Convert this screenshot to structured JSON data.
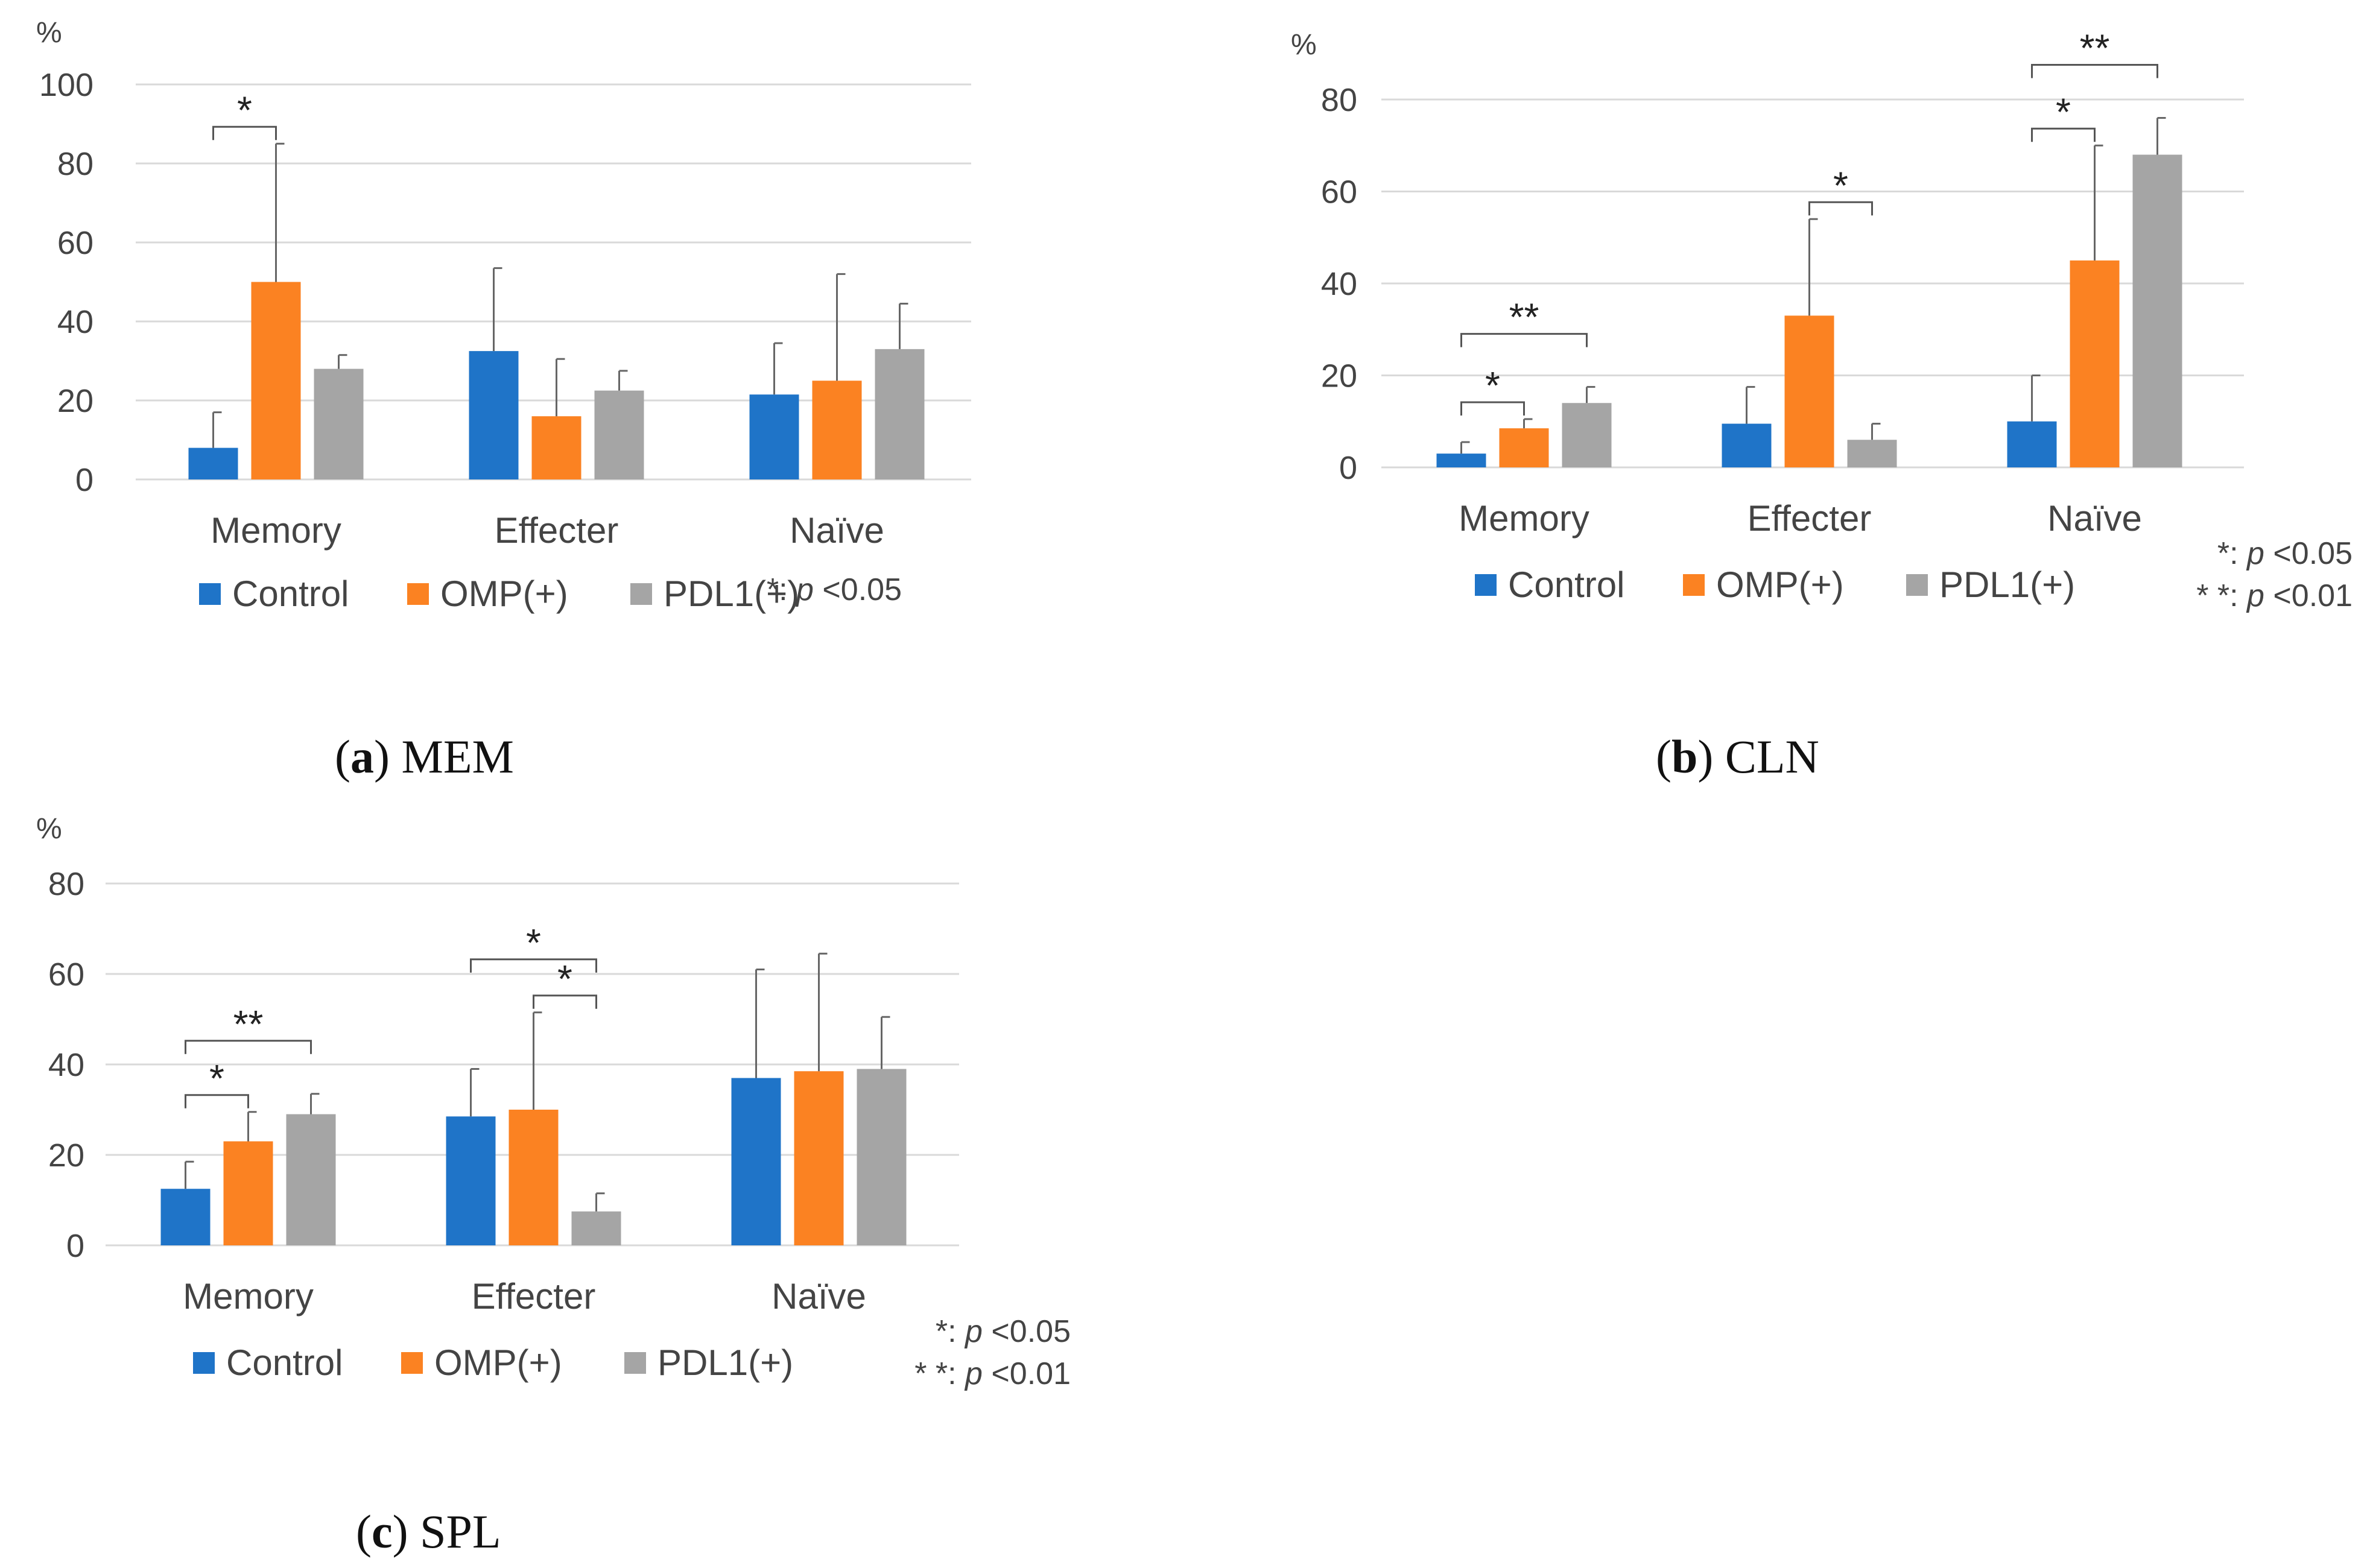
{
  "legend": [
    "Control",
    "OMP(+)",
    "PDL1(+)"
  ],
  "colors": [
    "#1f74c8",
    "#fb8222",
    "#a5a5a5"
  ],
  "unit_label": "%",
  "categories": [
    "Memory",
    "Effecter",
    "Naïve"
  ],
  "notes": {
    "p05": "*: p <0.05",
    "p01": "* *: p <0.01"
  },
  "captions": {
    "a": {
      "letter": "a",
      "name": "MEM"
    },
    "b": {
      "letter": "b",
      "name": "CLN"
    },
    "c": {
      "letter": "c",
      "name": "SPL"
    }
  },
  "chart_data": [
    {
      "id": "a",
      "type": "bar",
      "categories": [
        "Memory",
        "Effecter",
        "Naïve"
      ],
      "ylim": [
        0,
        100
      ],
      "yticks": [
        0,
        20,
        40,
        60,
        80,
        100
      ],
      "grid": true,
      "legend_position": "bottom",
      "series": [
        {
          "name": "Control",
          "values": [
            8,
            32.5,
            21.5
          ],
          "errors": [
            9,
            21,
            13
          ]
        },
        {
          "name": "OMP(+)",
          "values": [
            50,
            16,
            25
          ],
          "errors": [
            35,
            14.5,
            27
          ]
        },
        {
          "name": "PDL1(+)",
          "values": [
            28,
            22.5,
            33
          ],
          "errors": [
            3.5,
            5,
            11.5
          ]
        }
      ],
      "significance": [
        {
          "category": 0,
          "from": 0,
          "to": 1,
          "label": "*",
          "level": 0
        }
      ],
      "notes": [
        "*: p <0.05"
      ]
    },
    {
      "id": "b",
      "type": "bar",
      "categories": [
        "Memory",
        "Effecter",
        "Naïve"
      ],
      "ylim": [
        0,
        80
      ],
      "yticks": [
        0,
        20,
        40,
        60,
        80
      ],
      "grid": true,
      "legend_position": "bottom",
      "series": [
        {
          "name": "Control",
          "values": [
            3,
            9.5,
            10
          ],
          "errors": [
            2.5,
            8,
            10
          ]
        },
        {
          "name": "OMP(+)",
          "values": [
            8.5,
            33,
            45
          ],
          "errors": [
            2,
            21,
            25
          ]
        },
        {
          "name": "PDL1(+)",
          "values": [
            14,
            6,
            68
          ],
          "errors": [
            3.5,
            3.5,
            8
          ]
        }
      ],
      "significance": [
        {
          "category": 0,
          "from": 0,
          "to": 1,
          "label": "*",
          "level": 0
        },
        {
          "category": 0,
          "from": 0,
          "to": 2,
          "label": "**",
          "level": 1
        },
        {
          "category": 1,
          "from": 1,
          "to": 2,
          "label": "*",
          "level": 0
        },
        {
          "category": 2,
          "from": 0,
          "to": 1,
          "label": "*",
          "level": 0
        },
        {
          "category": 2,
          "from": 0,
          "to": 2,
          "label": "**",
          "level": 1
        }
      ],
      "notes": [
        "*: p <0.05",
        "* *: p <0.01"
      ]
    },
    {
      "id": "c",
      "type": "bar",
      "categories": [
        "Memory",
        "Effecter",
        "Naïve"
      ],
      "ylim": [
        0,
        80
      ],
      "yticks": [
        0,
        20,
        40,
        60,
        80
      ],
      "grid": true,
      "legend_position": "bottom",
      "series": [
        {
          "name": "Control",
          "values": [
            12.5,
            28.5,
            37
          ],
          "errors": [
            6,
            10.5,
            24
          ]
        },
        {
          "name": "OMP(+)",
          "values": [
            23,
            30,
            38.5
          ],
          "errors": [
            6.5,
            21.5,
            26
          ]
        },
        {
          "name": "PDL1(+)",
          "values": [
            29,
            7.5,
            39
          ],
          "errors": [
            4.5,
            4,
            11.5
          ]
        }
      ],
      "significance": [
        {
          "category": 0,
          "from": 0,
          "to": 1,
          "label": "*",
          "level": 0
        },
        {
          "category": 0,
          "from": 0,
          "to": 2,
          "label": "**",
          "level": 1
        },
        {
          "category": 1,
          "from": 1,
          "to": 2,
          "label": "*",
          "level": 0
        },
        {
          "category": 1,
          "from": 0,
          "to": 2,
          "label": "*",
          "level": 1
        }
      ],
      "notes": [
        "*: p <0.05",
        "* *: p <0.01"
      ]
    }
  ]
}
